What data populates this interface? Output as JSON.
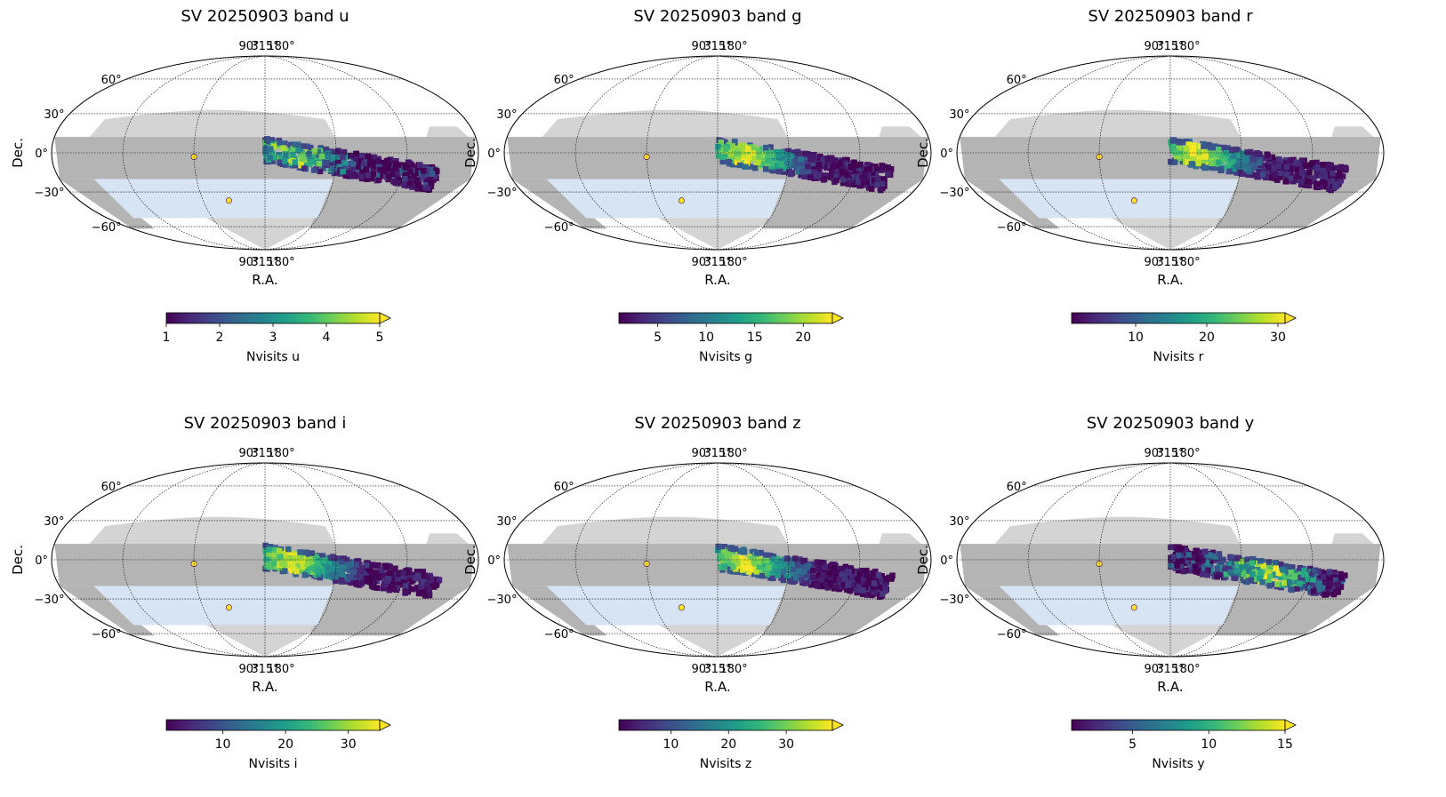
{
  "chart_data": [
    {
      "type": "heatmap",
      "projection": "mollweide",
      "title": "SV 20250903 band u",
      "xlabel": "R.A.",
      "ylabel": "Dec.",
      "ra_ticks": [
        "90°",
        "315°",
        "180°"
      ],
      "dec_ticks": [
        "60°",
        "30°",
        "0°",
        "−30°",
        "−60°"
      ],
      "colorbar": {
        "label": "Nvisits u",
        "min": 1,
        "max": 5,
        "ticks": [
          1,
          2,
          3,
          4,
          5
        ],
        "tick_labels": [
          "1",
          "2",
          "3",
          "4",
          "5"
        ],
        "extend": "max"
      },
      "band": "u"
    },
    {
      "type": "heatmap",
      "projection": "mollweide",
      "title": "SV 20250903 band g",
      "xlabel": "R.A.",
      "ylabel": "Dec.",
      "ra_ticks": [
        "90°",
        "315°",
        "180°"
      ],
      "dec_ticks": [
        "60°",
        "30°",
        "0°",
        "−30°",
        "−60°"
      ],
      "colorbar": {
        "label": "Nvisits g",
        "min": 1,
        "max": 23,
        "ticks": [
          5,
          10,
          15,
          20
        ],
        "tick_labels": [
          "5",
          "10",
          "15",
          "20"
        ],
        "extend": "max"
      },
      "band": "g"
    },
    {
      "type": "heatmap",
      "projection": "mollweide",
      "title": "SV 20250903 band r",
      "xlabel": "R.A.",
      "ylabel": "Dec.",
      "ra_ticks": [
        "90°",
        "315°",
        "180°"
      ],
      "dec_ticks": [
        "60°",
        "30°",
        "0°",
        "−30°",
        "−60°"
      ],
      "colorbar": {
        "label": "Nvisits r",
        "min": 1,
        "max": 31,
        "ticks": [
          10,
          20,
          30
        ],
        "tick_labels": [
          "10",
          "20",
          "30"
        ],
        "extend": "max"
      },
      "band": "r"
    },
    {
      "type": "heatmap",
      "projection": "mollweide",
      "title": "SV 20250903 band i",
      "xlabel": "R.A.",
      "ylabel": "Dec.",
      "ra_ticks": [
        "90°",
        "315°",
        "180°"
      ],
      "dec_ticks": [
        "60°",
        "30°",
        "0°",
        "−30°",
        "−60°"
      ],
      "colorbar": {
        "label": "Nvisits i",
        "min": 1,
        "max": 35,
        "ticks": [
          10,
          20,
          30
        ],
        "tick_labels": [
          "10",
          "20",
          "30"
        ],
        "extend": "max"
      },
      "band": "i"
    },
    {
      "type": "heatmap",
      "projection": "mollweide",
      "title": "SV 20250903 band z",
      "xlabel": "R.A.",
      "ylabel": "Dec.",
      "ra_ticks": [
        "90°",
        "315°",
        "180°"
      ],
      "dec_ticks": [
        "60°",
        "30°",
        "0°",
        "−30°",
        "−60°"
      ],
      "colorbar": {
        "label": "Nvisits z",
        "min": 1,
        "max": 38,
        "ticks": [
          10,
          20,
          30
        ],
        "tick_labels": [
          "10",
          "20",
          "30"
        ],
        "extend": "max"
      },
      "band": "z"
    },
    {
      "type": "heatmap",
      "projection": "mollweide",
      "title": "SV 20250903 band y",
      "xlabel": "R.A.",
      "ylabel": "Dec.",
      "ra_ticks": [
        "90°",
        "315°",
        "180°"
      ],
      "dec_ticks": [
        "60°",
        "30°",
        "0°",
        "−30°",
        "−60°"
      ],
      "colorbar": {
        "label": "Nvisits y",
        "min": 1,
        "max": 15,
        "ticks": [
          5,
          10,
          15
        ],
        "tick_labels": [
          "5",
          "10",
          "15"
        ],
        "extend": "max"
      },
      "band": "y"
    }
  ],
  "colors": {
    "footprint_dark": "#b4b4b4",
    "footprint_light": "#d4d4d4",
    "dwf_region": "#d6e4f3",
    "viridis": [
      "#440154",
      "#482878",
      "#3e4989",
      "#31688e",
      "#26828e",
      "#1f9e89",
      "#35b779",
      "#6ece58",
      "#b5de2b",
      "#fde725"
    ]
  }
}
